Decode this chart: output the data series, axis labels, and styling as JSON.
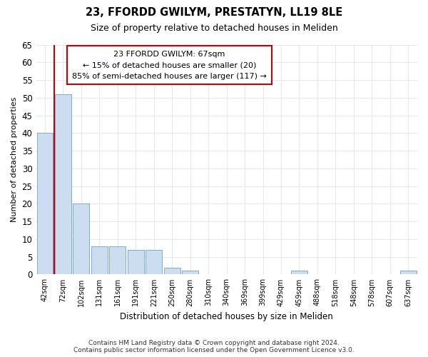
{
  "title": "23, FFORDD GWILYM, PRESTATYN, LL19 8LE",
  "subtitle": "Size of property relative to detached houses in Meliden",
  "xlabel": "Distribution of detached houses by size in Meliden",
  "ylabel": "Number of detached properties",
  "categories": [
    "42sqm",
    "72sqm",
    "102sqm",
    "131sqm",
    "161sqm",
    "191sqm",
    "221sqm",
    "250sqm",
    "280sqm",
    "310sqm",
    "340sqm",
    "369sqm",
    "399sqm",
    "429sqm",
    "459sqm",
    "488sqm",
    "518sqm",
    "548sqm",
    "578sqm",
    "607sqm",
    "637sqm"
  ],
  "values": [
    40,
    51,
    20,
    8,
    8,
    7,
    7,
    2,
    1,
    0,
    0,
    0,
    0,
    0,
    1,
    0,
    0,
    0,
    0,
    0,
    1
  ],
  "bar_color": "#ccddf0",
  "bar_edge_color": "#7aadd4",
  "ylim": [
    0,
    65
  ],
  "yticks": [
    0,
    5,
    10,
    15,
    20,
    25,
    30,
    35,
    40,
    45,
    50,
    55,
    60,
    65
  ],
  "property_label": "23 FFORDD GWILYM: 67sqm",
  "annotation_line1": "← 15% of detached houses are smaller (20)",
  "annotation_line2": "85% of semi-detached houses are larger (117) →",
  "vline_color": "#cc0000",
  "annotation_box_edgecolor": "#cc0000",
  "footer_line1": "Contains HM Land Registry data © Crown copyright and database right 2024.",
  "footer_line2": "Contains public sector information licensed under the Open Government Licence v3.0.",
  "background_color": "#ffffff",
  "grid_color": "#e8e8e8"
}
